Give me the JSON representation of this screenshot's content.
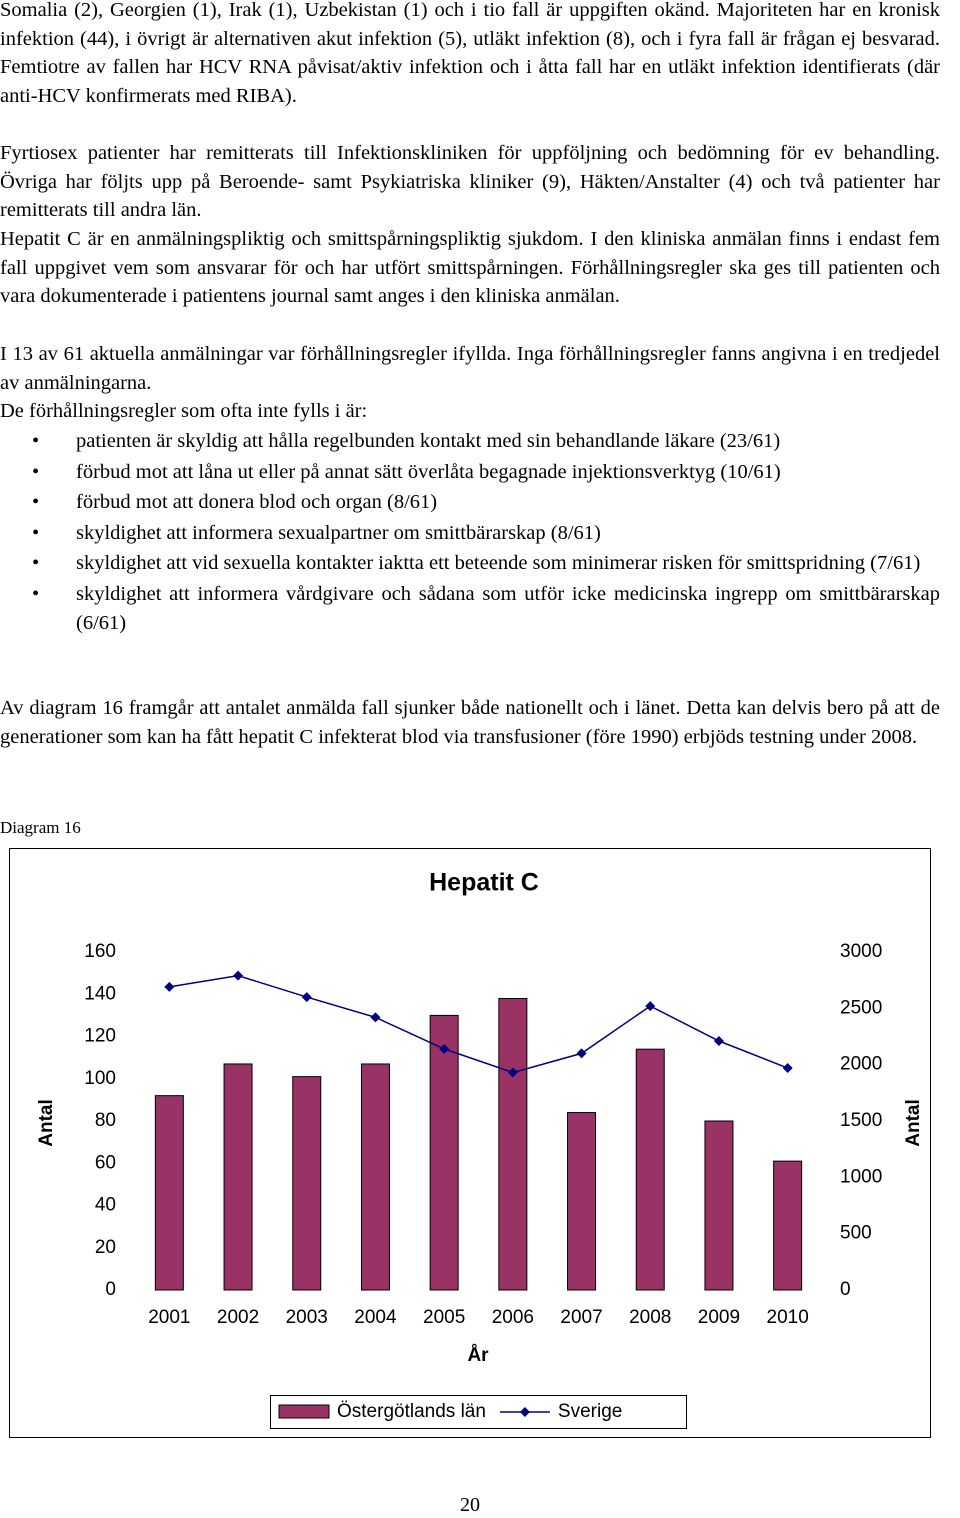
{
  "paragraphs": [
    "Somalia (2), Georgien (1), Irak (1), Uzbekistan (1) och i tio fall är uppgiften okänd. Majoriteten har en kronisk infektion (44), i övrigt är alternativen akut infektion (5), utläkt infektion (8), och i fyra fall är frågan ej besvarad. Femtiotre av fallen har HCV RNA påvisat/aktiv infektion och i åtta fall har en utläkt infektion identifierats (där anti-HCV konfirmerats med RIBA).",
    "Fyrtiosex patienter har remitterats till Infektionskliniken för uppföljning och bedömning för ev behandling. Övriga har följts upp på Beroende- samt Psykiatriska kliniker (9), Häkten/Anstalter (4) och två patienter har remitterats till andra län.",
    "Hepatit C är en anmälningspliktig och smittspårningspliktig sjukdom. I den kliniska anmälan finns i endast fem fall uppgivet vem som ansvarar för och har utfört smittspårningen. Förhållningsregler ska ges till patienten och vara dokumenterade i patientens journal samt anges i den kliniska anmälan.",
    "I 13 av 61 aktuella anmälningar var förhållningsregler ifyllda. Inga förhållningsregler fanns angivna i en tredjedel av anmälningarna.",
    "De förhållningsregler som ofta inte fylls i är:"
  ],
  "bullets": [
    "patienten är skyldig att hålla regelbunden kontakt med sin behandlande läkare (23/61)",
    "förbud mot att låna ut eller på annat sätt överlåta begagnade injektionsverktyg (10/61)",
    "förbud mot att donera blod och organ (8/61)",
    "skyldighet att informera sexualpartner om smittbärarskap (8/61)",
    "skyldighet att vid sexuella kontakter iakttа ett beteende som minimerar risken för smittspridning (7/61)",
    "skyldighet att informera vårdgivare och sådana som utför icke medicinska ingrepp om smittbärarskap (6/61)"
  ],
  "closing": "Av diagram 16 framgår att antalet anmälda fall sjunker både nationellt och i länet. Detta kan delvis bero på att de generationer som kan ha fått hepatit C infekterat blod via transfusioner (före 1990) erbjöds testning under 2008.",
  "caption": "Diagram 16",
  "page_number": "20",
  "chart_data": {
    "type": "bar",
    "title": "Hepatit C",
    "x_label": "År",
    "y_label": "Antal",
    "y2_label": "Antal",
    "categories": [
      "2001",
      "2002",
      "2003",
      "2004",
      "2005",
      "2006",
      "2007",
      "2008",
      "2009",
      "2010"
    ],
    "series": [
      {
        "name": "Östergötlands län",
        "type": "bar",
        "color": "#993366",
        "values": [
          92,
          107,
          101,
          107,
          130,
          138,
          84,
          114,
          80,
          61
        ]
      },
      {
        "name": "Sverige",
        "type": "line",
        "axis": "y2",
        "color": "#000080",
        "values": [
          2690,
          2790,
          2600,
          2420,
          2140,
          1930,
          2100,
          2520,
          2210,
          1970
        ]
      }
    ],
    "ylim": [
      0,
      160
    ],
    "yticks": [
      0,
      20,
      40,
      60,
      80,
      100,
      120,
      140,
      160
    ],
    "y2lim": [
      0,
      3000
    ],
    "y2ticks": [
      0,
      500,
      1000,
      1500,
      2000,
      2500,
      3000
    ],
    "grid": false,
    "legend": "bottom"
  }
}
